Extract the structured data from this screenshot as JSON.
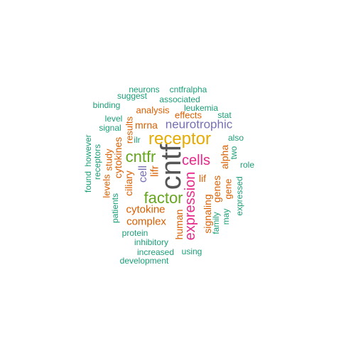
{
  "words": {
    "cntf": "cntf",
    "receptor": "receptor",
    "cntfr": "cntfr",
    "factor": "factor",
    "cells": "cells",
    "expression": "expression",
    "neurotrophic": "neurotrophic",
    "cytokine": "cytokine",
    "complex": "complex",
    "cell": "cell",
    "lifr": "lifr",
    "lif": "lif",
    "mrna": "mrna",
    "ciliary": "ciliary",
    "cytokines": "cytokines",
    "human": "human",
    "signaling": "signaling",
    "genes": "genes",
    "alpha": "alpha",
    "analysis": "analysis",
    "effects": "effects",
    "study": "study",
    "results": "results",
    "levels": "levels",
    "gene": "gene",
    "family": "family",
    "may": "may",
    "ilr": "ilr",
    "two": "two",
    "role": "role",
    "also": "also",
    "stat": "stat",
    "leukemia": "leukemia",
    "associated": "associated",
    "neurons": "neurons",
    "cntfralpha": "cntfralpha",
    "suggest": "suggest",
    "binding": "binding",
    "level": "level",
    "signal": "signal",
    "however": "however",
    "receptors": "receptors",
    "found": "found",
    "patients": "patients",
    "expressed": "expressed",
    "protein": "protein",
    "inhibitory": "inhibitory",
    "increased": "increased",
    "using": "using",
    "development": "development"
  },
  "colors": {
    "teal": "#1B9E77",
    "orange": "#D95F02",
    "purple": "#7570B3",
    "magenta": "#E7298A",
    "green": "#66A61E",
    "gold": "#E6AB02",
    "gray": "#555555"
  }
}
